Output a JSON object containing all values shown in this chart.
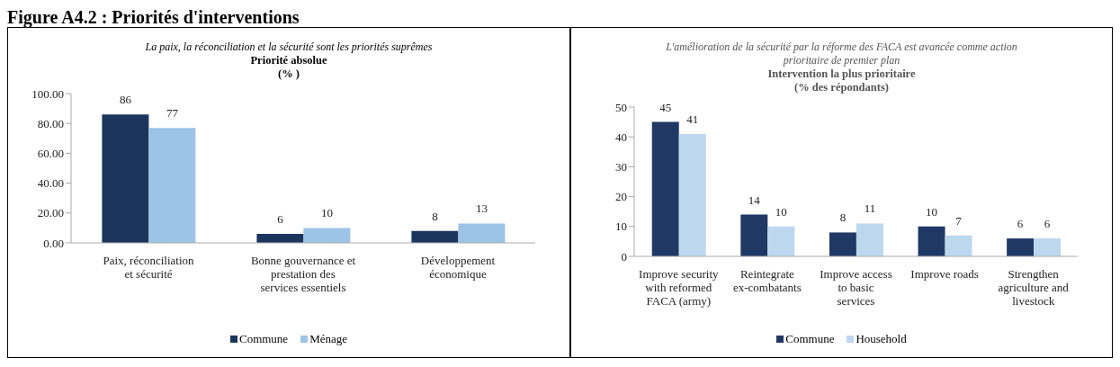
{
  "chart_data": [
    {
      "type": "bar",
      "annotations": [
        "Figure A4.2 : Priorités d'interventions"
      ],
      "subtitle": "La paix, la réconciliation et la sécurité sont les priorités suprêmes",
      "title": "Priorité absolue\n(% )",
      "categories": [
        "Paix, réconciliation et sécurité",
        "Bonne gouvernance et prestation des services essentiels",
        "Développement économique"
      ],
      "series": [
        {
          "name": "Commune",
          "color": "#1b365d",
          "values": [
            86,
            6,
            8
          ]
        },
        {
          "name": "Ménage",
          "color": "#9dc3e6",
          "values": [
            77,
            10,
            13
          ]
        }
      ],
      "ylim": [
        0,
        100
      ],
      "yticks": [
        {
          "value": 0,
          "label": "0.00"
        },
        {
          "value": 20,
          "label": "20.00"
        },
        {
          "value": 40,
          "label": "40.00"
        },
        {
          "value": 60,
          "label": "60.00"
        },
        {
          "value": 80,
          "label": "80.00"
        },
        {
          "value": 100,
          "label": "100.00"
        }
      ],
      "legend": "bottom",
      "data_labels": true
    },
    {
      "type": "bar",
      "subtitle": "L'amélioration de la sécurité par la réforme des  FACA est avancée comme action prioritaire de premier plan",
      "title": "Intervention la plus prioritaire\n(% des répondants)",
      "categories": [
        "Improve security with reformed FACA (army)",
        "Reintegrate ex-combatants",
        "Improve access to basic services",
        "Improve roads",
        "Strengthen agriculture and livestock"
      ],
      "series": [
        {
          "name": "Commune",
          "color": "#203864",
          "values": [
            45,
            14,
            8,
            10,
            6
          ]
        },
        {
          "name": "Household",
          "color": "#bdd7ee",
          "values": [
            41,
            10,
            11,
            7,
            6
          ]
        }
      ],
      "ylim": [
        0,
        50
      ],
      "yticks": [
        0,
        10,
        20,
        30,
        40,
        50
      ],
      "legend": "bottom",
      "data_labels": true
    }
  ]
}
